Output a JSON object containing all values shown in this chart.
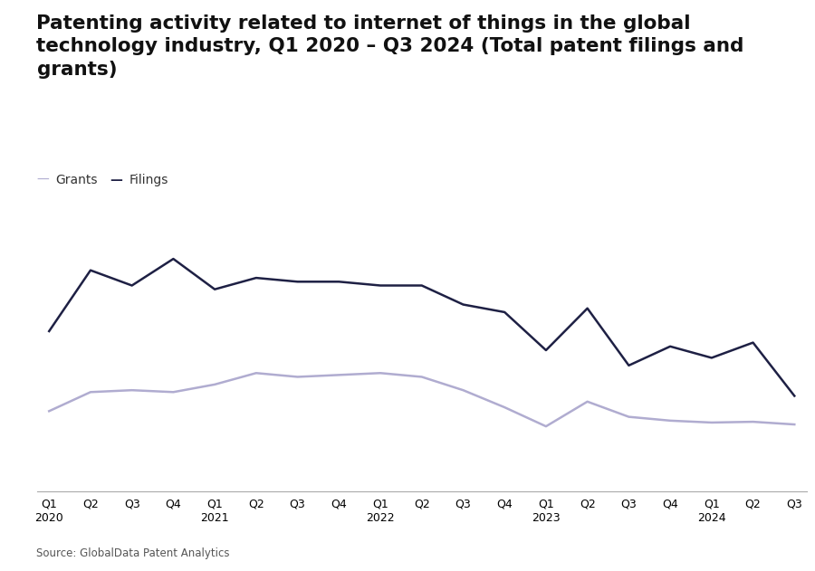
{
  "title_line1": "Patenting activity related to internet of things in the global",
  "title_line2": "technology industry, Q1 2020 – Q3 2024 (Total patent filings and",
  "title_line3": "grants)",
  "source": "Source: GlobalData Patent Analytics",
  "grants_color": "#b0acd0",
  "filings_color": "#1e2044",
  "background_color": "#ffffff",
  "labels": [
    "Q1\n2020",
    "Q2",
    "Q3",
    "Q4",
    "Q1\n2021",
    "Q2",
    "Q3",
    "Q4",
    "Q1\n2022",
    "Q2",
    "Q3",
    "Q4",
    "Q1\n2023",
    "Q2",
    "Q3",
    "Q4",
    "Q1\n2024",
    "Q2",
    "Q3"
  ],
  "filings": [
    4200,
    5800,
    5400,
    6100,
    5300,
    5600,
    5500,
    5500,
    5400,
    5400,
    4900,
    4700,
    3700,
    4800,
    3300,
    3800,
    3500,
    3900,
    2500
  ],
  "grants": [
    2100,
    2600,
    2650,
    2600,
    2800,
    3100,
    3000,
    3050,
    3100,
    3000,
    2650,
    2200,
    1700,
    2350,
    1950,
    1850,
    1800,
    1820,
    1750
  ],
  "ylim": [
    0,
    7500
  ],
  "legend_grants": "Grants",
  "legend_filings": "Filings",
  "title_fontsize": 15.5,
  "tick_fontsize": 9,
  "legend_fontsize": 10
}
